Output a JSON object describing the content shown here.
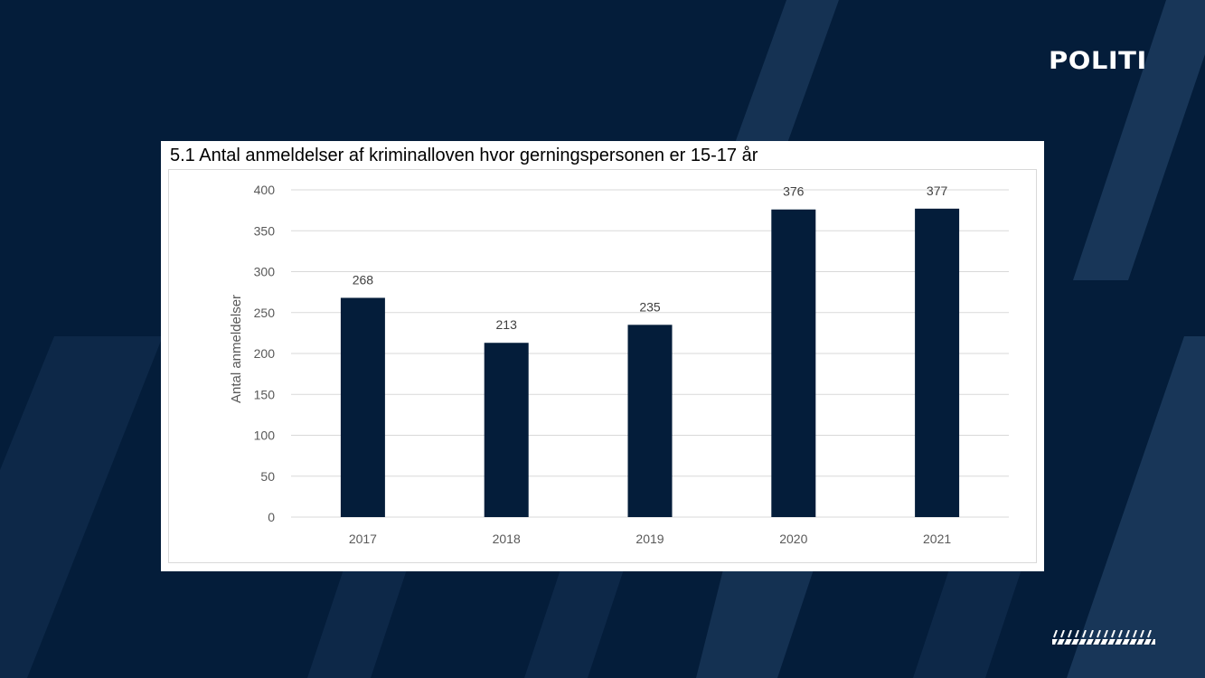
{
  "brand": {
    "logo_text": "POLITI",
    "background_color": "#041d3a",
    "stripe_color": "#1b3a5c"
  },
  "chart_data": {
    "type": "bar",
    "title": "5.1 Antal anmeldelser af kriminalloven hvor gerningspersonen er 15-17 år",
    "xlabel": "",
    "ylabel": "Antal anmeldelser",
    "categories": [
      "2017",
      "2018",
      "2019",
      "2020",
      "2021"
    ],
    "values": [
      268,
      213,
      235,
      376,
      377
    ],
    "ylim": [
      0,
      400
    ],
    "yticks": [
      0,
      50,
      100,
      150,
      200,
      250,
      300,
      350,
      400
    ],
    "grid": true,
    "data_labels": true,
    "bar_color": "#041d3a",
    "grid_color": "#d9d9d9"
  }
}
